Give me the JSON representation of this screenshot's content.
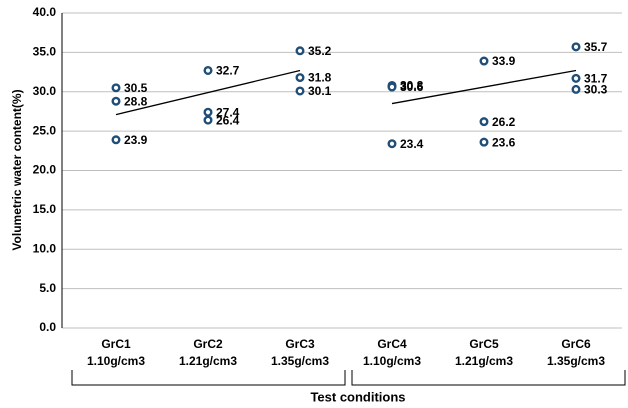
{
  "chart_data": {
    "type": "scatter",
    "y_label": "Volumetric  water content(%)",
    "x_label": "Test conditions",
    "categories": [
      "GrC1",
      "GrC2",
      "GrC3",
      "GrC4",
      "GrC5",
      "GrC6"
    ],
    "category_sublabels": [
      "1.10g/cm3",
      "1.21g/cm3",
      "1.35g/cm3",
      "1.10g/cm3",
      "1.21g/cm3",
      "1.35g/cm3"
    ],
    "series": [
      {
        "color": "#1f4e79",
        "values": [
          30.5,
          32.7,
          35.2,
          30.8,
          33.9,
          35.7
        ]
      },
      {
        "color": "#1f4e79",
        "values": [
          28.8,
          27.4,
          31.8,
          30.6,
          26.2,
          31.7
        ]
      },
      {
        "color": "#1f4e79",
        "values": [
          23.9,
          26.4,
          30.1,
          23.4,
          23.6,
          30.3
        ]
      }
    ],
    "trend_lines": [
      {
        "color": "#000000",
        "x": [
          0,
          2
        ],
        "values": [
          27.1,
          32.7
        ]
      },
      {
        "color": "#000000",
        "x": [
          3,
          5
        ],
        "values": [
          28.5,
          32.7
        ]
      }
    ],
    "ylim": [
      0,
      40
    ],
    "yticks": [
      {
        "value": 0,
        "label": "0.0"
      },
      {
        "value": 5,
        "label": "5.0"
      },
      {
        "value": 10,
        "label": "10.0"
      },
      {
        "value": 15,
        "label": "15.0"
      },
      {
        "value": 20,
        "label": "20.0"
      },
      {
        "value": 25,
        "label": "25.0"
      },
      {
        "value": 30,
        "label": "30.0"
      },
      {
        "value": 35,
        "label": "35.0"
      },
      {
        "value": 40,
        "label": "40.0"
      }
    ],
    "grid": true
  }
}
